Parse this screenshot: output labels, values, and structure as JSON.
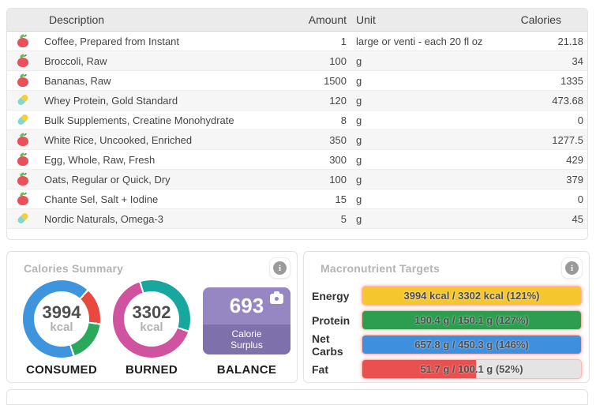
{
  "food_table": {
    "headers": {
      "description": "Description",
      "amount": "Amount",
      "unit": "Unit",
      "calories": "Calories"
    },
    "rows": [
      {
        "icon": "apple",
        "description": "Coffee, Prepared from Instant",
        "amount": "1",
        "unit": "large or venti - each 20 fl oz",
        "calories": "21.18"
      },
      {
        "icon": "apple",
        "description": "Broccoli, Raw",
        "amount": "100",
        "unit": "g",
        "calories": "34"
      },
      {
        "icon": "apple",
        "description": "Bananas, Raw",
        "amount": "1500",
        "unit": "g",
        "calories": "1335"
      },
      {
        "icon": "capsule",
        "description": "Whey Protein, Gold Standard",
        "amount": "120",
        "unit": "g",
        "calories": "473.68"
      },
      {
        "icon": "capsule",
        "description": "Bulk Supplements, Creatine Monohydrate",
        "amount": "8",
        "unit": "g",
        "calories": "0"
      },
      {
        "icon": "apple",
        "description": "White Rice, Uncooked, Enriched",
        "amount": "350",
        "unit": "g",
        "calories": "1277.5"
      },
      {
        "icon": "apple",
        "description": "Egg, Whole, Raw, Fresh",
        "amount": "300",
        "unit": "g",
        "calories": "429"
      },
      {
        "icon": "apple",
        "description": "Oats, Regular or Quick, Dry",
        "amount": "100",
        "unit": "g",
        "calories": "379"
      },
      {
        "icon": "apple",
        "description": "Chante Sel, Salt + Iodine",
        "amount": "15",
        "unit": "g",
        "calories": "0"
      },
      {
        "icon": "capsule",
        "description": "Nordic Naturals, Omega-3",
        "amount": "5",
        "unit": "g",
        "calories": "45"
      }
    ]
  },
  "calories_summary": {
    "title": "Calories Summary",
    "consumed": {
      "value": "3994",
      "unit": "kcal",
      "label": "CONSUMED",
      "segments": [
        {
          "color": "#3e95dd",
          "start": 0,
          "end": 41
        },
        {
          "color": "#ffffff",
          "start": 41,
          "end": 44
        },
        {
          "color": "#e8483e",
          "start": 44,
          "end": 96
        },
        {
          "color": "#ffffff",
          "start": 96,
          "end": 99
        },
        {
          "color": "#2ba85c",
          "start": 99,
          "end": 160
        },
        {
          "color": "#ffffff",
          "start": 160,
          "end": 163
        },
        {
          "color": "#3e95dd",
          "start": 163,
          "end": 360
        }
      ]
    },
    "burned": {
      "value": "3302",
      "unit": "kcal",
      "label": "BURNED",
      "segments": [
        {
          "color": "#18a79e",
          "start": 0,
          "end": 107
        },
        {
          "color": "#ffffff",
          "start": 107,
          "end": 110
        },
        {
          "color": "#d053a0",
          "start": 110,
          "end": 341
        },
        {
          "color": "#ffffff",
          "start": 341,
          "end": 344
        },
        {
          "color": "#18a79e",
          "start": 344,
          "end": 360
        }
      ]
    },
    "balance": {
      "value": "693",
      "sublabel": "Calorie Surplus",
      "label": "BALANCE"
    }
  },
  "macronutrient_targets": {
    "title": "Macronutrient Targets",
    "rows": [
      {
        "label": "Energy",
        "text": "3994 kcal / 3302 kcal (121%)",
        "color": "#f6c62f",
        "fill_percent": 100
      },
      {
        "label": "Protein",
        "text": "190.4 g / 150.1 g (127%)",
        "color": "#2d9e50",
        "fill_percent": 100
      },
      {
        "label": "Net Carbs",
        "text": "657.8 g / 450.3 g (146%)",
        "color": "#3e8fdd",
        "fill_percent": 100
      },
      {
        "label": "Fat",
        "text": "51.7 g / 100.1 g (52%)",
        "color": "#e95050",
        "fill_percent": 52
      }
    ]
  },
  "chart_data": [
    {
      "type": "pie",
      "title": "CONSUMED",
      "center_value": 3994,
      "unit": "kcal",
      "slices_degrees": [
        {
          "name": "blue",
          "deg": 238
        },
        {
          "name": "red",
          "deg": 52
        },
        {
          "name": "green",
          "deg": 61
        }
      ]
    },
    {
      "type": "pie",
      "title": "BURNED",
      "center_value": 3302,
      "unit": "kcal",
      "slices_degrees": [
        {
          "name": "teal",
          "deg": 123
        },
        {
          "name": "magenta",
          "deg": 231
        }
      ]
    },
    {
      "type": "bar",
      "title": "Macronutrient Targets",
      "categories": [
        "Energy",
        "Protein",
        "Net Carbs",
        "Fat"
      ],
      "values": [
        121,
        127,
        146,
        52
      ],
      "labels": [
        "3994 kcal / 3302 kcal (121%)",
        "190.4 g / 150.1 g (127%)",
        "657.8 g / 450.3 g (146%)",
        "51.7 g / 100.1 g (52%)"
      ],
      "ylabel": "% of target",
      "ylim": [
        0,
        146
      ]
    }
  ],
  "colors": {
    "consumed_blue": "#3e95dd",
    "consumed_red": "#e8483e",
    "consumed_green": "#2ba85c",
    "burned_teal": "#18a79e",
    "burned_magenta": "#d053a0",
    "balance_purple_light": "#9687c2",
    "balance_purple_dark": "#7e70aa",
    "energy_yellow": "#f6c62f",
    "protein_green": "#2d9e50",
    "carbs_blue": "#3e8fdd",
    "fat_red": "#e95050"
  }
}
